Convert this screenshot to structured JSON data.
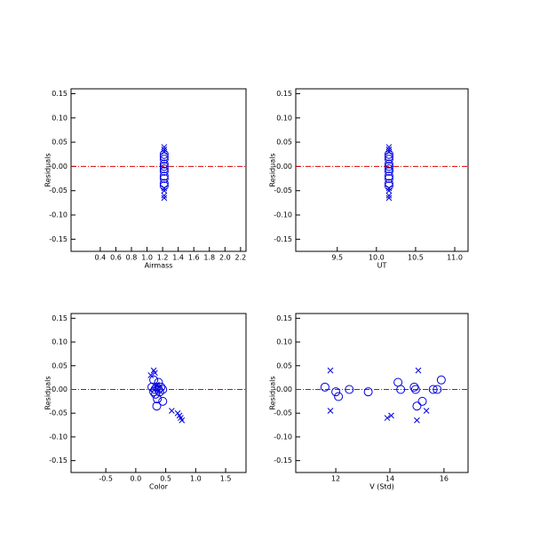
{
  "chart_data": [
    {
      "type": "scatter",
      "xlabel": "Airmass",
      "ylabel": "Residuals",
      "xlim": [
        0.025,
        2.27
      ],
      "ylim": [
        -0.175,
        0.16
      ],
      "xticks": [
        0.4,
        0.6,
        0.8,
        {
          "value": 1,
          "label": "1.0"
        },
        1.2,
        1.4,
        1.6,
        1.8,
        {
          "value": 2,
          "label": "2.0"
        },
        2.2
      ],
      "yticks": [
        {
          "value": 0.15,
          "label": "0.15"
        },
        {
          "value": 0.1,
          "label": "0.10"
        },
        {
          "value": 0.05,
          "label": "0.05"
        },
        {
          "value": 0,
          "label": "-0.00"
        },
        {
          "value": -0.05,
          "label": "-0.05"
        },
        {
          "value": -0.1,
          "label": "-0.10"
        },
        {
          "value": -0.15,
          "label": "-0.15"
        }
      ],
      "reference_line": 0,
      "reference_color": "#e00000",
      "series": [
        {
          "marker": "circle",
          "color": "#0000e0",
          "x": [
            1.22,
            1.22,
            1.22,
            1.22,
            1.22,
            1.22,
            1.22,
            1.22,
            1.22,
            1.22,
            1.22
          ],
          "values": [
            0.025,
            0.02,
            0.015,
            0.005,
            0,
            -0.005,
            -0.01,
            -0.02,
            -0.025,
            -0.035,
            -0.04
          ]
        },
        {
          "marker": "cross",
          "color": "#0000e0",
          "x": [
            1.22,
            1.22,
            1.22,
            1.22,
            1.22,
            1.22,
            1.22
          ],
          "values": [
            0.04,
            0.035,
            0.03,
            -0.045,
            -0.05,
            -0.06,
            -0.065
          ]
        }
      ]
    },
    {
      "type": "scatter",
      "xlabel": "UT",
      "ylabel": "Residuals",
      "xlim": [
        8.97,
        11.17
      ],
      "ylim": [
        -0.175,
        0.16
      ],
      "xticks": [
        9.5,
        {
          "value": 10,
          "label": "10.0"
        },
        10.5,
        {
          "value": 11,
          "label": "11.0"
        }
      ],
      "yticks": [
        {
          "value": 0.15,
          "label": "0.15"
        },
        {
          "value": 0.1,
          "label": "0.10"
        },
        {
          "value": 0.05,
          "label": "0.05"
        },
        {
          "value": 0,
          "label": "-0.00"
        },
        {
          "value": -0.05,
          "label": "-0.05"
        },
        {
          "value": -0.1,
          "label": "-0.10"
        },
        {
          "value": -0.15,
          "label": "-0.15"
        }
      ],
      "reference_line": 0,
      "reference_color": "#e00000",
      "series": [
        {
          "marker": "circle",
          "color": "#0000e0",
          "x": [
            10.16,
            10.16,
            10.16,
            10.16,
            10.16,
            10.16,
            10.16,
            10.16,
            10.16,
            10.16,
            10.16
          ],
          "values": [
            0.025,
            0.02,
            0.015,
            0.005,
            0,
            -0.005,
            -0.01,
            -0.02,
            -0.025,
            -0.035,
            -0.04
          ]
        },
        {
          "marker": "cross",
          "color": "#0000e0",
          "x": [
            10.16,
            10.16,
            10.16,
            10.16,
            10.16,
            10.16,
            10.16
          ],
          "values": [
            0.04,
            0.035,
            0.03,
            -0.045,
            -0.05,
            -0.06,
            -0.065
          ]
        }
      ]
    },
    {
      "type": "scatter",
      "xlabel": "Color",
      "ylabel": "Residuals",
      "xlim": [
        -1.08,
        1.84
      ],
      "ylim": [
        -0.175,
        0.16
      ],
      "xticks": [
        -0.5,
        {
          "value": 0,
          "label": "0.0"
        },
        0.5,
        {
          "value": 1,
          "label": "1.0"
        },
        1.5
      ],
      "yticks": [
        {
          "value": 0.15,
          "label": "0.15"
        },
        {
          "value": 0.1,
          "label": "0.10"
        },
        {
          "value": 0.05,
          "label": "0.05"
        },
        {
          "value": 0,
          "label": "-0.00"
        },
        {
          "value": -0.05,
          "label": "-0.05"
        },
        {
          "value": -0.1,
          "label": "-0.10"
        },
        {
          "value": -0.15,
          "label": "-0.15"
        }
      ],
      "reference_line": 0,
      "reference_color": "#e00000",
      "series": [
        {
          "marker": "circle",
          "color": "#0000e0",
          "x": [
            0.27,
            0.3,
            0.32,
            0.35,
            0.38,
            0.4,
            0.42,
            0.45,
            0.33,
            0.36,
            0.35,
            0.45,
            0.38,
            0.3
          ],
          "values": [
            0.005,
            0.02,
            0,
            0.005,
            0,
            -0.005,
            0.005,
            0,
            -0.01,
            -0.02,
            -0.035,
            -0.025,
            0.015,
            -0.005
          ]
        },
        {
          "marker": "cross",
          "color": "#0000e0",
          "x": [
            0.25,
            0.3,
            0.32,
            0.35,
            0.6,
            0.7,
            0.73,
            0.75,
            0.77
          ],
          "values": [
            0.03,
            0.04,
            0.035,
            0.01,
            -0.045,
            -0.05,
            -0.055,
            -0.06,
            -0.065
          ]
        }
      ]
    },
    {
      "type": "scatter",
      "xlabel": "V (Std)",
      "ylabel": "Residuals",
      "xlim": [
        10.52,
        16.89
      ],
      "ylim": [
        -0.175,
        0.16
      ],
      "xticks": [
        12,
        14,
        16
      ],
      "yticks": [
        {
          "value": 0.15,
          "label": "0.15"
        },
        {
          "value": 0.1,
          "label": "0.10"
        },
        {
          "value": 0.05,
          "label": "0.05"
        },
        {
          "value": 0,
          "label": "-0.00"
        },
        {
          "value": -0.05,
          "label": "-0.05"
        },
        {
          "value": -0.1,
          "label": "-0.10"
        },
        {
          "value": -0.15,
          "label": "-0.15"
        }
      ],
      "reference_line": 0,
      "reference_color": "#e00000",
      "series": [
        {
          "marker": "circle",
          "color": "#0000e0",
          "x": [
            11.6,
            12.0,
            12.1,
            12.5,
            13.2,
            14.3,
            14.4,
            14.9,
            14.95,
            15.0,
            15.2,
            15.6,
            15.75,
            15.9
          ],
          "values": [
            0.005,
            -0.005,
            -0.015,
            0,
            -0.005,
            0.015,
            0,
            0.005,
            0,
            -0.035,
            -0.025,
            0,
            0,
            0.02
          ]
        },
        {
          "marker": "cross",
          "color": "#0000e0",
          "x": [
            11.8,
            11.8,
            13.9,
            14.05,
            15.0,
            15.05,
            15.35
          ],
          "values": [
            0.04,
            -0.045,
            -0.06,
            -0.055,
            -0.065,
            0.04,
            -0.045
          ]
        }
      ]
    }
  ]
}
